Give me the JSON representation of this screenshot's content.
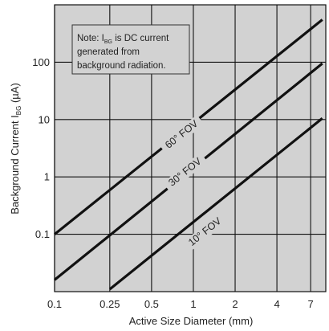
{
  "chart_data": {
    "type": "line",
    "xscale": "log",
    "yscale": "log",
    "xlim": [
      0.1,
      9.0
    ],
    "ylim": [
      0.01,
      1000
    ],
    "grid": true,
    "xlabel": "Active Size Diameter (mm)",
    "ylabel_prefix": "Background Current I",
    "ylabel_sub": "BG",
    "ylabel_suffix": " (µA)",
    "x_ticks": [
      {
        "value": 0.1,
        "label": "0.1"
      },
      {
        "value": 0.25,
        "label": "0.25"
      },
      {
        "value": 0.5,
        "label": "0.5"
      },
      {
        "value": 1,
        "label": "1"
      },
      {
        "value": 2,
        "label": "2"
      },
      {
        "value": 4,
        "label": "4"
      },
      {
        "value": 7,
        "label": "7"
      }
    ],
    "y_ticks": [
      {
        "value": 0.1,
        "label": "0.1"
      },
      {
        "value": 1,
        "label": "1"
      },
      {
        "value": 10,
        "label": "10"
      },
      {
        "value": 100,
        "label": "100"
      }
    ],
    "y_grid": [
      0.1,
      1,
      10,
      100
    ],
    "series": [
      {
        "name": "60° FOV",
        "x": [
          0.1,
          8.5
        ],
        "y": [
          0.1,
          550
        ],
        "color": "#111111"
      },
      {
        "name": "30° FOV",
        "x": [
          0.1,
          8.5
        ],
        "y": [
          0.016,
          95
        ],
        "color": "#111111"
      },
      {
        "name": "10° FOV",
        "x": [
          0.25,
          8.5
        ],
        "y": [
          0.011,
          10.5
        ],
        "color": "#111111"
      }
    ],
    "series_label_at": [
      {
        "x": 0.85,
        "y": 5.0
      },
      {
        "x": 0.9,
        "y": 1.1
      },
      {
        "x": 1.25,
        "y": 0.1
      }
    ],
    "note": {
      "line1_prefix": "Note: I",
      "line1_sub": "BG",
      "line1_suffix": " is DC current",
      "line2": "generated from",
      "line3": "background radiation."
    }
  }
}
